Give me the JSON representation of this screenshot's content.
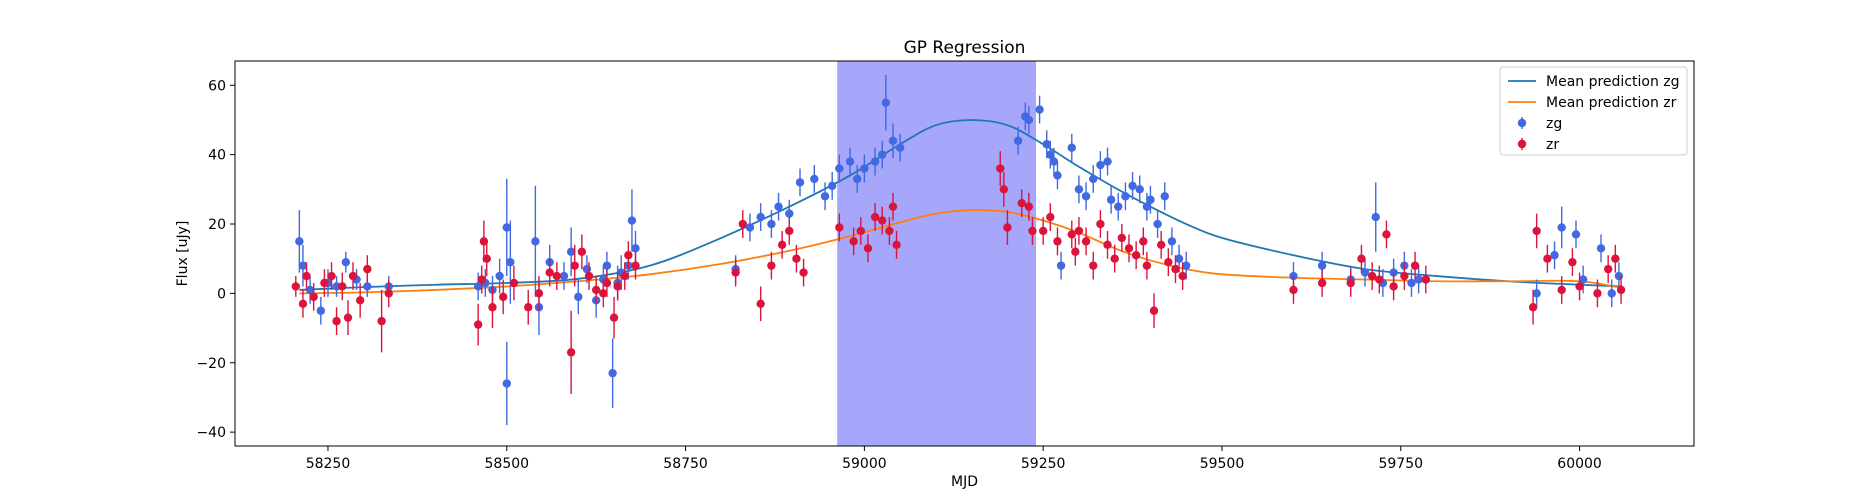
{
  "chart_data": {
    "type": "scatter",
    "title": "GP Regression",
    "xlabel": "MJD",
    "ylabel": "Flux [uJy]",
    "xlim": [
      58120,
      60160
    ],
    "ylim": [
      -44,
      67
    ],
    "x_ticks": [
      58250,
      58500,
      58750,
      59000,
      59250,
      59500,
      59750,
      60000
    ],
    "y_ticks": [
      -40,
      -20,
      0,
      20,
      40,
      60
    ],
    "grid": false,
    "legend_position": "top-right",
    "highlight_region": {
      "x": [
        58962,
        59240
      ],
      "color": "#a6a6fb"
    },
    "series": [
      {
        "name": "Mean prediction zg",
        "kind": "line",
        "color": "#1f77b4",
        "x": [
          58210,
          58300,
          58400,
          58500,
          58600,
          58700,
          58800,
          58900,
          58980,
          59050,
          59100,
          59150,
          59200,
          59250,
          59300,
          59350,
          59400,
          59450,
          59500,
          59600,
          59700,
          59800,
          59900,
          60000,
          60060
        ],
        "y": [
          1.0,
          1.8,
          2.5,
          3.0,
          4.2,
          8.0,
          16.0,
          25.5,
          34.0,
          43.0,
          48.5,
          50.0,
          48.5,
          43.0,
          36.5,
          30.5,
          25.0,
          20.0,
          16.0,
          11.0,
          7.0,
          5.0,
          3.5,
          2.5,
          2.0
        ]
      },
      {
        "name": "Mean prediction zr",
        "kind": "line",
        "color": "#ff7f0e",
        "x": [
          58210,
          58300,
          58400,
          58500,
          58600,
          58700,
          58800,
          58900,
          58980,
          59050,
          59100,
          59150,
          59200,
          59250,
          59300,
          59350,
          59400,
          59450,
          59500,
          59600,
          59700,
          59800,
          59900,
          60000,
          60060
        ],
        "y": [
          0.0,
          0.3,
          1.0,
          2.0,
          3.5,
          5.5,
          8.5,
          12.5,
          16.5,
          20.5,
          23.0,
          24.0,
          23.5,
          21.0,
          17.5,
          13.0,
          9.5,
          7.0,
          5.5,
          4.5,
          4.0,
          3.5,
          3.5,
          3.5,
          1.5
        ]
      },
      {
        "name": "zg",
        "kind": "errorbar",
        "color": "#4169e1",
        "points": [
          [
            58210,
            15,
            9
          ],
          [
            58215,
            8,
            6
          ],
          [
            58225,
            1,
            4
          ],
          [
            58240,
            -5,
            4
          ],
          [
            58250,
            3,
            4
          ],
          [
            58262,
            2,
            3
          ],
          [
            58275,
            9,
            3
          ],
          [
            58290,
            4,
            3
          ],
          [
            58305,
            2,
            3
          ],
          [
            58335,
            2,
            3
          ],
          [
            58460,
            2,
            4
          ],
          [
            58470,
            3,
            4
          ],
          [
            58480,
            1,
            4
          ],
          [
            58490,
            5,
            5
          ],
          [
            58500,
            19,
            14
          ],
          [
            58505,
            9,
            12
          ],
          [
            58500,
            -26,
            12
          ],
          [
            58540,
            15,
            16
          ],
          [
            58545,
            -4,
            8
          ],
          [
            58560,
            9,
            5
          ],
          [
            58580,
            5,
            4
          ],
          [
            58590,
            12,
            7
          ],
          [
            58600,
            -1,
            5
          ],
          [
            58612,
            7,
            4
          ],
          [
            58625,
            -2,
            5
          ],
          [
            58635,
            4,
            4
          ],
          [
            58640,
            8,
            4
          ],
          [
            58648,
            -23,
            10
          ],
          [
            58655,
            3,
            5
          ],
          [
            58660,
            6,
            5
          ],
          [
            58670,
            8,
            4
          ],
          [
            58675,
            21,
            9
          ],
          [
            58680,
            13,
            5
          ],
          [
            58820,
            7,
            4
          ],
          [
            58840,
            19,
            4
          ],
          [
            58855,
            22,
            4
          ],
          [
            58870,
            20,
            4
          ],
          [
            58880,
            25,
            4
          ],
          [
            58895,
            23,
            4
          ],
          [
            58910,
            32,
            4
          ],
          [
            58930,
            33,
            4
          ],
          [
            58945,
            28,
            4
          ],
          [
            58955,
            31,
            4
          ],
          [
            58965,
            36,
            4
          ],
          [
            58980,
            38,
            4
          ],
          [
            58990,
            33,
            4
          ],
          [
            59000,
            36,
            4
          ],
          [
            59015,
            38,
            4
          ],
          [
            59025,
            40,
            4
          ],
          [
            59030,
            55,
            8
          ],
          [
            59040,
            44,
            5
          ],
          [
            59050,
            42,
            4
          ],
          [
            59215,
            44,
            4
          ],
          [
            59225,
            51,
            4
          ],
          [
            59230,
            50,
            4
          ],
          [
            59245,
            53,
            4
          ],
          [
            59255,
            43,
            4
          ],
          [
            59260,
            40,
            4
          ],
          [
            59265,
            38,
            4
          ],
          [
            59270,
            34,
            4
          ],
          [
            59275,
            8,
            4
          ],
          [
            59290,
            42,
            4
          ],
          [
            59300,
            30,
            4
          ],
          [
            59310,
            28,
            4
          ],
          [
            59320,
            33,
            4
          ],
          [
            59330,
            37,
            4
          ],
          [
            59340,
            38,
            4
          ],
          [
            59345,
            27,
            4
          ],
          [
            59355,
            25,
            4
          ],
          [
            59365,
            28,
            4
          ],
          [
            59375,
            31,
            4
          ],
          [
            59385,
            30,
            4
          ],
          [
            59395,
            25,
            4
          ],
          [
            59400,
            27,
            4
          ],
          [
            59410,
            20,
            4
          ],
          [
            59420,
            28,
            4
          ],
          [
            59430,
            15,
            4
          ],
          [
            59440,
            10,
            4
          ],
          [
            59450,
            8,
            4
          ],
          [
            59600,
            5,
            4
          ],
          [
            59640,
            8,
            4
          ],
          [
            59680,
            4,
            4
          ],
          [
            59700,
            6,
            4
          ],
          [
            59715,
            22,
            10
          ],
          [
            59725,
            3,
            4
          ],
          [
            59740,
            6,
            4
          ],
          [
            59755,
            8,
            4
          ],
          [
            59765,
            3,
            4
          ],
          [
            59775,
            4,
            4
          ],
          [
            59940,
            0,
            4
          ],
          [
            59965,
            11,
            4
          ],
          [
            59975,
            19,
            6
          ],
          [
            59995,
            17,
            4
          ],
          [
            60005,
            4,
            4
          ],
          [
            60030,
            13,
            4
          ],
          [
            60045,
            0,
            4
          ],
          [
            60055,
            5,
            4
          ]
        ]
      },
      {
        "name": "zr",
        "kind": "errorbar",
        "color": "#dc143c",
        "points": [
          [
            58205,
            2,
            3
          ],
          [
            58215,
            -3,
            4
          ],
          [
            58220,
            5,
            4
          ],
          [
            58230,
            -1,
            4
          ],
          [
            58245,
            3,
            4
          ],
          [
            58255,
            5,
            4
          ],
          [
            58262,
            -8,
            4
          ],
          [
            58270,
            2,
            4
          ],
          [
            58278,
            -7,
            5
          ],
          [
            58285,
            5,
            4
          ],
          [
            58295,
            -2,
            5
          ],
          [
            58305,
            7,
            4
          ],
          [
            58325,
            -8,
            9
          ],
          [
            58335,
            0,
            4
          ],
          [
            58460,
            -9,
            6
          ],
          [
            58465,
            4,
            4
          ],
          [
            58468,
            15,
            6
          ],
          [
            58472,
            10,
            5
          ],
          [
            58480,
            -4,
            6
          ],
          [
            58495,
            -1,
            5
          ],
          [
            58510,
            3,
            5
          ],
          [
            58530,
            -4,
            5
          ],
          [
            58545,
            0,
            5
          ],
          [
            58560,
            6,
            4
          ],
          [
            58570,
            5,
            4
          ],
          [
            58590,
            -17,
            12
          ],
          [
            58595,
            8,
            6
          ],
          [
            58605,
            12,
            5
          ],
          [
            58615,
            5,
            4
          ],
          [
            58625,
            1,
            4
          ],
          [
            58635,
            0,
            4
          ],
          [
            58640,
            3,
            4
          ],
          [
            58650,
            -7,
            6
          ],
          [
            58655,
            2,
            4
          ],
          [
            58665,
            5,
            4
          ],
          [
            58670,
            11,
            4
          ],
          [
            58680,
            8,
            4
          ],
          [
            58820,
            6,
            4
          ],
          [
            58830,
            20,
            4
          ],
          [
            58855,
            -3,
            5
          ],
          [
            58870,
            8,
            4
          ],
          [
            58885,
            14,
            4
          ],
          [
            58895,
            18,
            4
          ],
          [
            58905,
            10,
            4
          ],
          [
            58915,
            6,
            4
          ],
          [
            58965,
            19,
            4
          ],
          [
            58985,
            15,
            4
          ],
          [
            58995,
            18,
            4
          ],
          [
            59005,
            13,
            4
          ],
          [
            59015,
            22,
            4
          ],
          [
            59025,
            21,
            4
          ],
          [
            59035,
            18,
            4
          ],
          [
            59040,
            25,
            4
          ],
          [
            59045,
            14,
            4
          ],
          [
            59190,
            36,
            5
          ],
          [
            59195,
            30,
            5
          ],
          [
            59200,
            19,
            5
          ],
          [
            59220,
            26,
            4
          ],
          [
            59230,
            25,
            4
          ],
          [
            59235,
            18,
            4
          ],
          [
            59250,
            18,
            4
          ],
          [
            59260,
            22,
            4
          ],
          [
            59270,
            15,
            4
          ],
          [
            59290,
            17,
            4
          ],
          [
            59295,
            12,
            4
          ],
          [
            59300,
            18,
            4
          ],
          [
            59310,
            15,
            4
          ],
          [
            59320,
            8,
            4
          ],
          [
            59330,
            20,
            4
          ],
          [
            59340,
            14,
            4
          ],
          [
            59350,
            10,
            4
          ],
          [
            59360,
            16,
            4
          ],
          [
            59370,
            13,
            4
          ],
          [
            59380,
            11,
            4
          ],
          [
            59390,
            15,
            4
          ],
          [
            59395,
            8,
            4
          ],
          [
            59405,
            -5,
            5
          ],
          [
            59415,
            14,
            4
          ],
          [
            59425,
            9,
            4
          ],
          [
            59435,
            7,
            4
          ],
          [
            59445,
            5,
            4
          ],
          [
            59600,
            1,
            4
          ],
          [
            59640,
            3,
            4
          ],
          [
            59680,
            3,
            4
          ],
          [
            59695,
            10,
            4
          ],
          [
            59710,
            5,
            4
          ],
          [
            59720,
            4,
            4
          ],
          [
            59730,
            17,
            4
          ],
          [
            59740,
            2,
            4
          ],
          [
            59755,
            5,
            4
          ],
          [
            59770,
            8,
            4
          ],
          [
            59785,
            4,
            4
          ],
          [
            59935,
            -4,
            5
          ],
          [
            59940,
            18,
            5
          ],
          [
            59955,
            10,
            4
          ],
          [
            59975,
            1,
            4
          ],
          [
            59990,
            9,
            4
          ],
          [
            60000,
            2,
            4
          ],
          [
            60025,
            0,
            4
          ],
          [
            60040,
            7,
            4
          ],
          [
            60050,
            10,
            4
          ],
          [
            60058,
            1,
            4
          ]
        ]
      }
    ]
  }
}
